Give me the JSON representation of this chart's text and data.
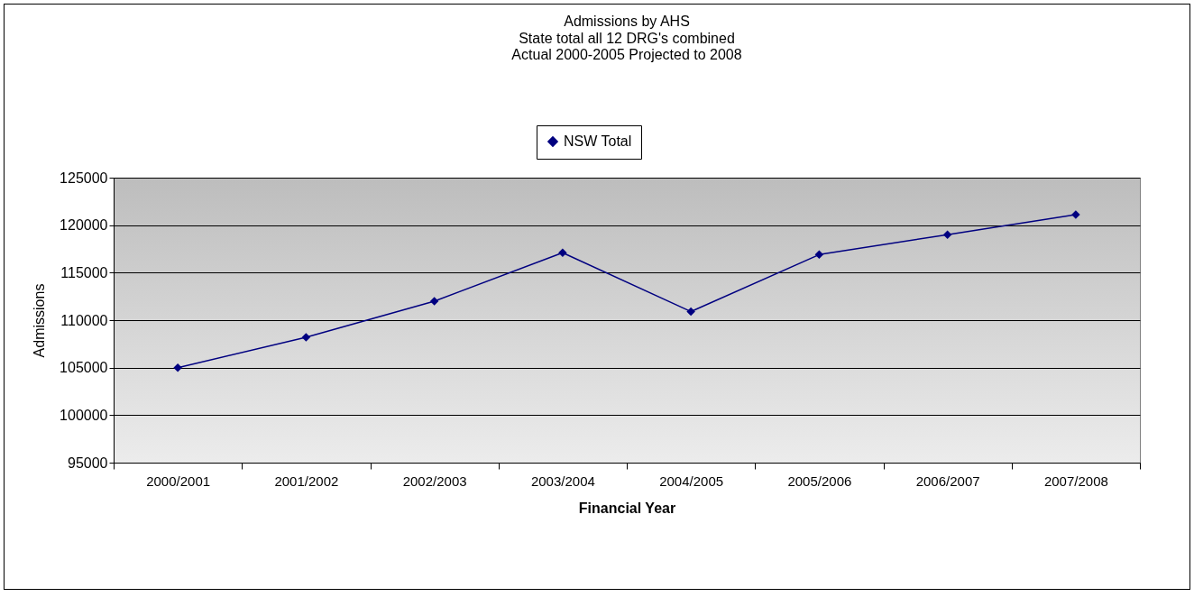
{
  "chart_data": {
    "type": "line",
    "title": "Admissions by AHS",
    "subtitle": "State total all 12 DRG's combined\nActual 2000-2005 Projected to 2008",
    "xlabel": "Financial Year",
    "ylabel": "Admissions",
    "categories": [
      "2000/2001",
      "2001/2002",
      "2002/2003",
      "2003/2004",
      "2004/2005",
      "2005/2006",
      "2006/2007",
      "2007/2008"
    ],
    "series": [
      {
        "name": "NSW Total",
        "color": "#000080",
        "values": [
          105000,
          108200,
          112000,
          117100,
          110900,
          116900,
          119000,
          121100
        ]
      }
    ],
    "ylim": [
      95000,
      125000
    ],
    "yticks": [
      95000,
      100000,
      105000,
      110000,
      115000,
      120000,
      125000
    ],
    "grid": "y",
    "legend": "top",
    "marker": "diamond",
    "line_style": "solid"
  }
}
